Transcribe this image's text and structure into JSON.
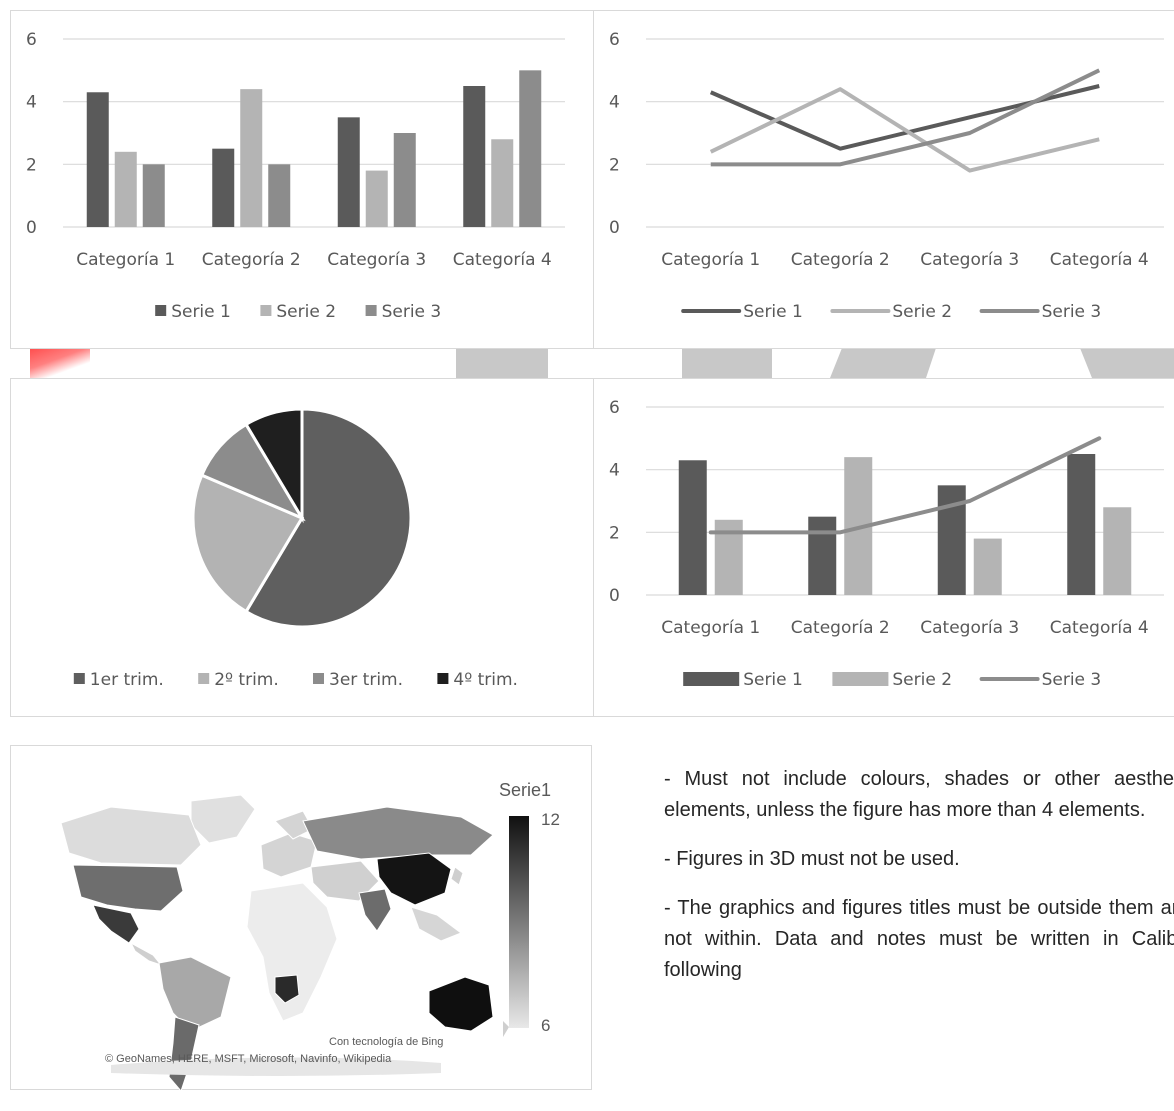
{
  "colors": {
    "serie1": "#5a5a5a",
    "serie2": "#b4b4b4",
    "serie3": "#8c8c8c",
    "pie": [
      "#5f5f5f",
      "#b3b3b3",
      "#8c8c8c",
      "#1f1f1f"
    ],
    "grid": "#d9d9d9",
    "accent_red": "#ff4d4d",
    "deco_gray": "#c8c8c8"
  },
  "chart_data": [
    {
      "type": "bar",
      "categories": [
        "Categoría 1",
        "Categoría 2",
        "Categoría 3",
        "Categoría 4"
      ],
      "series": [
        {
          "name": "Serie 1",
          "values": [
            4.3,
            2.5,
            3.5,
            4.5
          ]
        },
        {
          "name": "Serie 2",
          "values": [
            2.4,
            4.4,
            1.8,
            2.8
          ]
        },
        {
          "name": "Serie 3",
          "values": [
            2,
            2,
            3,
            5
          ]
        }
      ],
      "yticks": [
        "0",
        "2",
        "4",
        "6"
      ],
      "ylim": [
        0,
        6
      ],
      "grid": true,
      "legend": "bottom"
    },
    {
      "type": "line",
      "categories": [
        "Categoría 1",
        "Categoría 2",
        "Categoría 3",
        "Categoría 4"
      ],
      "series": [
        {
          "name": "Serie 1",
          "values": [
            4.3,
            2.5,
            3.5,
            4.5
          ]
        },
        {
          "name": "Serie 2",
          "values": [
            2.4,
            4.4,
            1.8,
            2.8
          ]
        },
        {
          "name": "Serie 3",
          "values": [
            2,
            2,
            3,
            5
          ]
        }
      ],
      "yticks": [
        "0",
        "2",
        "4",
        "6"
      ],
      "ylim": [
        0,
        6
      ],
      "grid": true,
      "legend": "bottom"
    },
    {
      "type": "pie",
      "categories": [
        "1er trim.",
        "2º trim.",
        "3er trim.",
        "4º trim."
      ],
      "values": [
        8.2,
        3.2,
        1.4,
        1.2
      ],
      "legend": "bottom"
    },
    {
      "type": "bar",
      "combo": true,
      "categories": [
        "Categoría 1",
        "Categoría 2",
        "Categoría 3",
        "Categoría 4"
      ],
      "series": [
        {
          "name": "Serie 1",
          "values": [
            4.3,
            2.5,
            3.5,
            4.5
          ],
          "type": "bar"
        },
        {
          "name": "Serie 2",
          "values": [
            2.4,
            4.4,
            1.8,
            2.8
          ],
          "type": "bar"
        },
        {
          "name": "Serie 3",
          "values": [
            2,
            2,
            3,
            5
          ],
          "type": "line"
        }
      ],
      "yticks": [
        "0",
        "2",
        "4",
        "6"
      ],
      "ylim": [
        0,
        6
      ],
      "grid": true,
      "legend": "bottom"
    }
  ],
  "map": {
    "legend_title": "Serie1",
    "legend_max": "12",
    "legend_min": "6",
    "credit_bing": "Con tecnología de Bing",
    "credit_sources": "© GeoNames, HERE, MSFT, Microsoft, Navinfo, Wikipedia"
  },
  "text": {
    "p1": "- Must not include colours, shades or other aesthetic elements, unless the figure has more than 4 elements.",
    "p2": "- Figures in 3D must not be used.",
    "p3": "- The graphics and figures titles must be outside them and not within. Data and notes must be written in Calibri, following"
  }
}
